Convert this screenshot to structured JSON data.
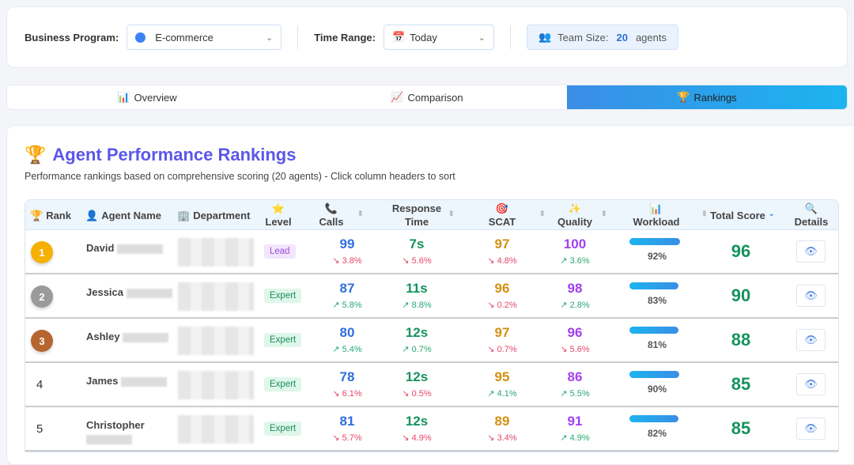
{
  "filters": {
    "program_label": "Business Program:",
    "program_value": "E-commerce",
    "time_label": "Time Range:",
    "time_value": "Today",
    "team_label": "Team Size:",
    "team_count": "20",
    "team_unit": "agents"
  },
  "tabs": [
    {
      "label": "Overview",
      "icon": "📊"
    },
    {
      "label": "Comparison",
      "icon": "📈"
    },
    {
      "label": "Rankings",
      "icon": "🏆",
      "active": true
    }
  ],
  "title": "Agent Performance Rankings",
  "subtitle": "Performance rankings based on comprehensive scoring (20 agents) - Click column headers to sort",
  "headers": {
    "rank": "Rank",
    "name": "Agent Name",
    "dept": "Department",
    "level": "Level",
    "calls": "Calls",
    "response": "Response Time",
    "scat": "SCAT",
    "quality": "Quality",
    "workload": "Workload",
    "total": "Total Score",
    "details": "Details"
  },
  "colors": {
    "calls": "#2f6fe0",
    "response": "#16935e",
    "scat": "#d4900f",
    "quality": "#a23ff0",
    "up": "#2aa873",
    "down": "#e5486b",
    "gold": "#f5b000",
    "silver": "#9a9a9a",
    "bronze": "#b5652e"
  },
  "rows": [
    {
      "rank": "1",
      "name": "David",
      "level": "Lead",
      "calls": "99",
      "calls_d": "3.8%",
      "calls_up": false,
      "resp": "7s",
      "resp_d": "5.6%",
      "resp_up": false,
      "scat": "97",
      "scat_d": "4.8%",
      "scat_up": false,
      "qual": "100",
      "qual_d": "3.6%",
      "qual_up": true,
      "workload": "92%",
      "workload_pct": 92,
      "total": "96"
    },
    {
      "rank": "2",
      "name": "Jessica",
      "level": "Expert",
      "calls": "87",
      "calls_d": "5.8%",
      "calls_up": true,
      "resp": "11s",
      "resp_d": "8.8%",
      "resp_up": true,
      "scat": "96",
      "scat_d": "0.2%",
      "scat_up": false,
      "qual": "98",
      "qual_d": "2.8%",
      "qual_up": true,
      "workload": "83%",
      "workload_pct": 83,
      "total": "90"
    },
    {
      "rank": "3",
      "name": "Ashley",
      "level": "Expert",
      "calls": "80",
      "calls_d": "5.4%",
      "calls_up": true,
      "resp": "12s",
      "resp_d": "0.7%",
      "resp_up": true,
      "scat": "97",
      "scat_d": "0.7%",
      "scat_up": false,
      "qual": "96",
      "qual_d": "5.6%",
      "qual_up": false,
      "workload": "81%",
      "workload_pct": 81,
      "total": "88"
    },
    {
      "rank": "4",
      "name": "James",
      "level": "Expert",
      "calls": "78",
      "calls_d": "6.1%",
      "calls_up": false,
      "resp": "12s",
      "resp_d": "0.5%",
      "resp_up": false,
      "scat": "95",
      "scat_d": "4.1%",
      "scat_up": true,
      "qual": "86",
      "qual_d": "5.5%",
      "qual_up": true,
      "workload": "90%",
      "workload_pct": 90,
      "total": "85"
    },
    {
      "rank": "5",
      "name": "Christopher",
      "level": "Expert",
      "calls": "81",
      "calls_d": "5.7%",
      "calls_up": false,
      "resp": "12s",
      "resp_d": "4.9%",
      "resp_up": false,
      "scat": "89",
      "scat_d": "3.4%",
      "scat_up": false,
      "qual": "91",
      "qual_d": "4.9%",
      "qual_up": true,
      "workload": "82%",
      "workload_pct": 82,
      "total": "85"
    }
  ]
}
